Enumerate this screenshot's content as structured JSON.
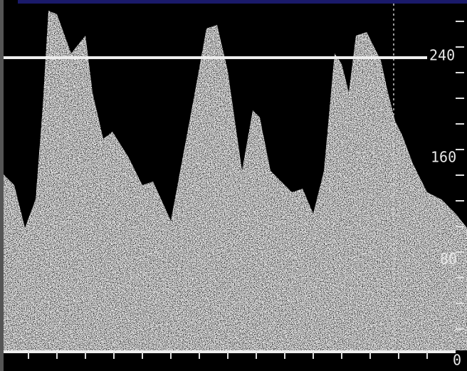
{
  "scale": {
    "labels": [
      "240",
      "160",
      "80",
      "0"
    ]
  }
}
